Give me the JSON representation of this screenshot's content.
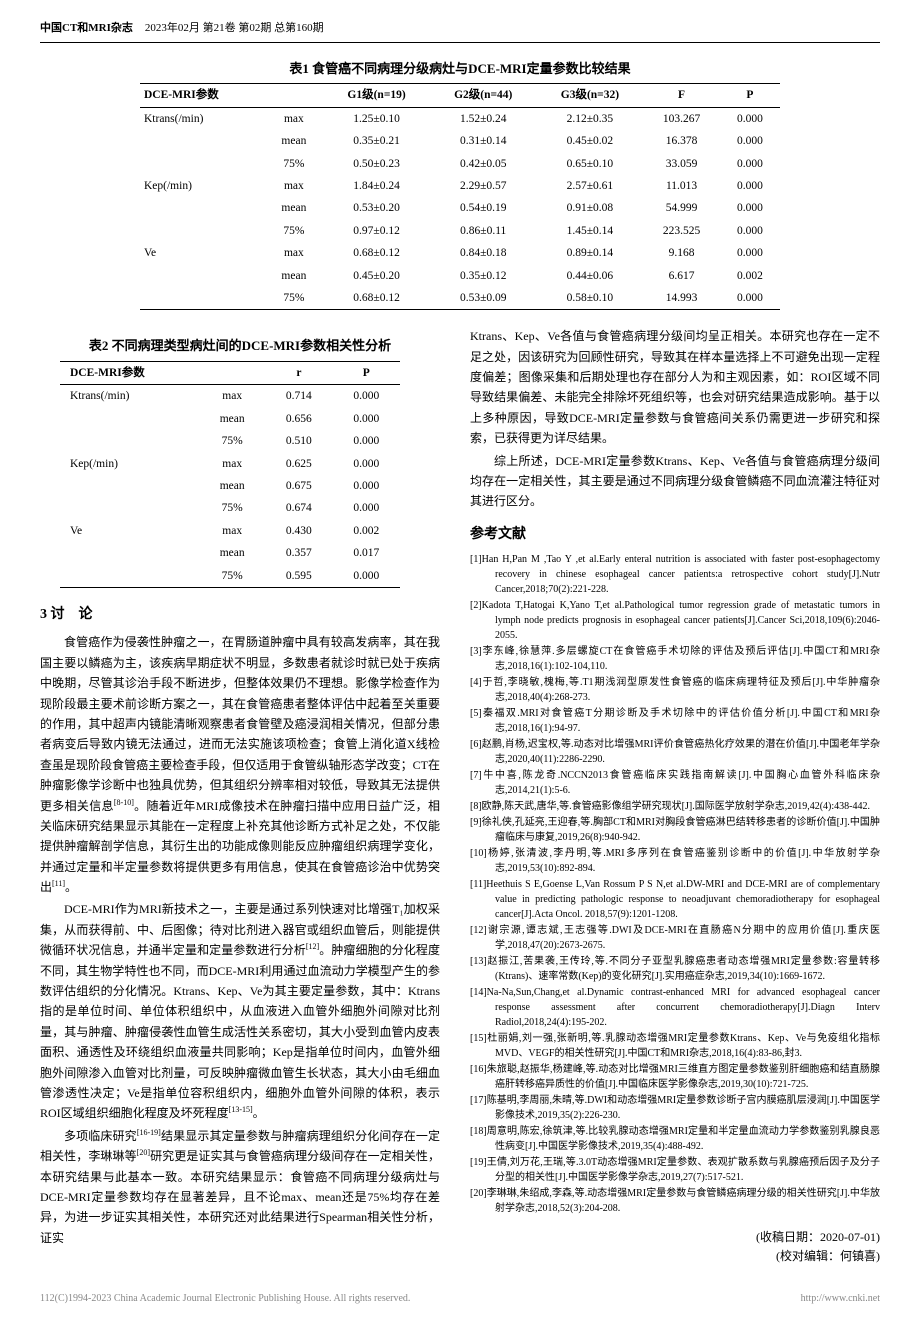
{
  "header": {
    "journal": "中国CT和MRI杂志",
    "issue": "2023年02月 第21卷 第02期 总第160期"
  },
  "table1": {
    "caption": "表1 食管癌不同病理分级病灶与DCE-MRI定量参数比较结果",
    "headers": [
      "DCE-MRI参数",
      "",
      "G1级(n=19)",
      "G2级(n=44)",
      "G3级(n=32)",
      "F",
      "P"
    ],
    "rows": [
      [
        "Ktrans(/min)",
        "max",
        "1.25±0.10",
        "1.52±0.24",
        "2.12±0.35",
        "103.267",
        "0.000"
      ],
      [
        "",
        "mean",
        "0.35±0.21",
        "0.31±0.14",
        "0.45±0.02",
        "16.378",
        "0.000"
      ],
      [
        "",
        "75%",
        "0.50±0.23",
        "0.42±0.05",
        "0.65±0.10",
        "33.059",
        "0.000"
      ],
      [
        "Kep(/min)",
        "max",
        "1.84±0.24",
        "2.29±0.57",
        "2.57±0.61",
        "11.013",
        "0.000"
      ],
      [
        "",
        "mean",
        "0.53±0.20",
        "0.54±0.19",
        "0.91±0.08",
        "54.999",
        "0.000"
      ],
      [
        "",
        "75%",
        "0.97±0.12",
        "0.86±0.11",
        "1.45±0.14",
        "223.525",
        "0.000"
      ],
      [
        "Ve",
        "max",
        "0.68±0.12",
        "0.84±0.18",
        "0.89±0.14",
        "9.168",
        "0.000"
      ],
      [
        "",
        "mean",
        "0.45±0.20",
        "0.35±0.12",
        "0.44±0.06",
        "6.617",
        "0.002"
      ],
      [
        "",
        "75%",
        "0.68±0.12",
        "0.53±0.09",
        "0.58±0.10",
        "14.993",
        "0.000"
      ]
    ]
  },
  "table2": {
    "caption": "表2 不同病理类型病灶间的DCE-MRI参数相关性分析",
    "headers": [
      "DCE-MRI参数",
      "",
      "r",
      "P"
    ],
    "rows": [
      [
        "Ktrans(/min)",
        "max",
        "0.714",
        "0.000"
      ],
      [
        "",
        "mean",
        "0.656",
        "0.000"
      ],
      [
        "",
        "75%",
        "0.510",
        "0.000"
      ],
      [
        "Kep(/min)",
        "max",
        "0.625",
        "0.000"
      ],
      [
        "",
        "mean",
        "0.675",
        "0.000"
      ],
      [
        "",
        "75%",
        "0.674",
        "0.000"
      ],
      [
        "Ve",
        "max",
        "0.430",
        "0.002"
      ],
      [
        "",
        "mean",
        "0.357",
        "0.017"
      ],
      [
        "",
        "75%",
        "0.595",
        "0.000"
      ]
    ]
  },
  "discussion": {
    "heading": "3 讨　论",
    "p1": "食管癌作为侵袭性肿瘤之一，在胃肠道肿瘤中具有较高发病率，其在我国主要以鳞癌为主，该疾病早期症状不明显，多数患者就诊时就已处于疾病中晚期，尽管其诊治手段不断进步，但整体效果仍不理想。影像学检查作为现阶段最主要术前诊断方案之一，其在食管癌患者整体评估中起着至关重要的作用，其中超声内镜能清晰观察患者食管壁及癌浸润相关情况，但部分患者病变后导致内镜无法通过，进而无法实施该项检查；食管上消化道X线检查虽是现阶段食管癌主要检查手段，但仅适用于食管纵轴形态学改变；CT在肿瘤影像学诊断中也独具优势，但其组织分辨率相对较低，导致其无法提供更多相关信息",
    "p1b": "。随着近年MRI成像技术在肿瘤扫描中应用日益广泛，相关临床研究结果显示其能在一定程度上补充其他诊断方式补足之处，不仅能提供肿瘤解剖学信息，其衍生出的功能成像则能反应肿瘤组织病理学变化，并通过定量和半定量参数将提供更多有用信息，使其在食管癌诊治中优势突出",
    "p1c": "。",
    "p2": "DCE-MRI作为MRI新技术之一，主要是通过系列快速对比增强T₁加权采集，从而获得前、中、后图像；待对比剂进入器官或组织血管后，则能提供微循环状况信息，并通半定量和定量参数进行分析",
    "p2b": "。肿瘤细胞的分化程度不同，其生物学特性也不同，而DCE-MRI利用通过血流动力学模型产生的参数评估组织的分化情况。Ktrans、Kep、Ve为其主要定量参数，其中：Ktrans指的是单位时间、单位体积组织中，从血液进入血管外细胞外间隙对比剂量，其与肿瘤、肿瘤侵袭性血管生成活性关系密切，其大小受到血管内皮表面积、通透性及环绕组织血液量共同影响；Kep是指单位时间内，血管外细胞外间隙渗入血管对比剂量，可反映肿瘤微血管生长状态，其大小由毛细血管渗透性决定；Ve是指单位容积组织内，细胞外血管外间隙的体积，表示ROI区域组织细胞化程度及坏死程度",
    "p2c": "。",
    "p3": "多项临床研究",
    "p3b": "结果显示其定量参数与肿瘤病理组织分化间存在一定相关性，李琳琳等",
    "p3c": "研究更是证实其与食管癌病理分级间存在一定相关性，本研究结果与此基本一致。本研究结果显示：食管癌不同病理分级病灶与DCE-MRI定量参数均存在显著差异，且不论max、mean还是75%均存在差异，为进一步证实其相关性，本研究还对此结果进行Spearman相关性分析，证实"
  },
  "rightcol": {
    "p1": "Ktrans、Kep、Ve各值与食管癌病理分级间均呈正相关。本研究也存在一定不足之处，因该研究为回顾性研究，导致其在样本量选择上不可避免出现一定程度偏差；图像采集和后期处理也存在部分人为和主观因素，如：ROI区域不同导致结果偏差、未能完全排除坏死组织等，也会对研究结果造成影响。基于以上多种原因，导致DCE-MRI定量参数与食管癌间关系仍需更进一步研究和探索，已获得更为详尽结果。",
    "p2": "综上所述，DCE-MRI定量参数Ktrans、Kep、Ve各值与食管癌病理分级间均存在一定相关性，其主要是通过不同病理分级食管鳞癌不同血流灌注特征对其进行区分。"
  },
  "references": {
    "heading": "参考文献",
    "items": [
      "[1]Han H,Pan M ,Tao Y ,et al.Early enteral nutrition is associated with faster post-esophagectomy recovery in chinese esophageal cancer patients:a retrospective cohort study[J].Nutr Cancer,2018;70(2):221-228.",
      "[2]Kadota T,Hatogai K,Yano T,et al.Pathological tumor regression grade of metastatic tumors in lymph node predicts prognosis in esophageal cancer patients[J].Cancer Sci,2018,109(6):2046-2055.",
      "[3]李东峰,徐慧萍.多层螺旋CT在食管癌手术切除的评估及预后评估[J].中国CT和MRI杂志,2018,16(1):102-104,110.",
      "[4]于哲,李晓敏,槐梅,等.T1期浅润型原发性食管癌的临床病理特征及预后[J].中华肿瘤杂志,2018,40(4):268-273.",
      "[5]秦福双.MRI对食管癌T分期诊断及手术切除中的评估价值分析[J].中国CT和MRI杂志,2018,16(1):94-97.",
      "[6]赵鹏,肖杨,迟宝权,等.动态对比增强MRI评价食管癌热化疗效果的潜在价值[J].中国老年学杂志,2020,40(11):2286-2290.",
      "[7]牛中喜,陈龙奇.NCCN2013食管癌临床实践指南解读[J].中国胸心血管外科临床杂志,2014,21(1):5-6.",
      "[8]欧静,陈天武,唐华,等.食管癌影像组学研究现状[J].国际医学放射学杂志,2019,42(4):438-442.",
      "[9]徐礼侠,孔延亮,王迎春,等.胸部CT和MRI对胸段食管癌淋巴结转移患者的诊断价值[J].中国肿瘤临床与康复,2019,26(8):940-942.",
      "[10]杨婷,张清波,李丹明,等.MRI多序列在食管癌鉴别诊断中的价值[J].中华放射学杂志,2019,53(10):892-894.",
      "[11]Heethuis S E,Goense L,Van Rossum P S N,et al.DW-MRI and DCE-MRI are of complementary value in predicting pathologic response to neoadjuvant chemoradiotherapy for esophageal cancer[J].Acta Oncol. 2018,57(9):1201-1208.",
      "[12]谢宗源,谭志斌,王志强等.DWI及DCE-MRI在直肠癌N分期中的应用价值[J].重庆医学,2018,47(20):2673-2675.",
      "[13]赵振江,苦果袭,王传玲,等.不同分子亚型乳腺癌患者动态增强MRI定量参数:容量转移(Ktrans)、速率常数(Kep)的变化研究[J].实用癌症杂志,2019,34(10):1669-1672.",
      "[14]Na-Na,Sun,Chang,et al.Dynamic contrast-enhanced MRI for advanced esophageal cancer response assessment after concurrent chemoradiotherapy[J].Diagn Interv Radiol,2018,24(4):195-202.",
      "[15]杜丽娟,刘一强,张新明,等.乳腺动态增强MRI定量参数Ktrans、Kep、Ve与免疫组化指标MVD、VEGF的相关性研究[J].中国CT和MRI杂志,2018,16(4):83-86,封3.",
      "[16]朱旅聪,赵振华,杨建峰,等.动态对比增强MRI三维直方图定量参数鉴别肝细胞癌和结直肠腺癌肝转移癌异质性的价值[J].中国临床医学影像杂志,2019,30(10):721-725.",
      "[17]陈基明,李周丽,朱晴,等.DWI和动态增强MRI定量参数诊断子宫内膜癌肌层浸润[J].中国医学影像技术,2019,35(2):226-230.",
      "[18]周意明,陈宏,徐筑津,等.比较乳腺动态增强MRI定量和半定量血流动力学参数鉴别乳腺良恶性病变[J].中国医学影像技术,2019,35(4):488-492.",
      "[19]王倩,刘万花,王瑞,等.3.0T动态增强MRI定量参数、表观扩散系数与乳腺癌预后因子及分子分型的相关性[J].中国医学影像学杂志,2019,27(7):517-521.",
      "[20]李琳琳,朱绍成,李森,等.动态增强MRI定量参数与食管鳞癌病理分级的相关性研究[J].中华放射学杂志,2018,52(3):204-208."
    ]
  },
  "footer_dates": {
    "received": "(收稿日期：2020-07-01)",
    "editor": "(校对编辑：何镇喜)"
  },
  "page_footer": {
    "page": "112",
    "copyright": "1994-2023 China Academic Journal Electronic Publishing House. All rights reserved.",
    "url": "http://www.cnki.net"
  },
  "sup": {
    "r8_10": "[8-10]",
    "r11": "[11]",
    "r12": "[12]",
    "r13_15": "[13-15]",
    "r16_19": "[16-19]",
    "r20": "[20]"
  }
}
